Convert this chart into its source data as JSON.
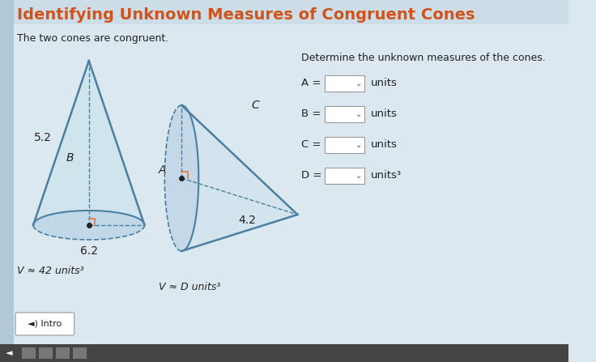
{
  "title": "Identifying Unknown Measures of Congruent Cones",
  "subtitle": "The two cones are congruent.",
  "bg_color": "#dce8f0",
  "title_color": "#d2531a",
  "cone1": {
    "label_slant": "5.2",
    "label_B": "B",
    "label_radius": "6.2",
    "volume": "V ≈ 42 units³",
    "fill_color": "#d0e4ee",
    "line_color": "#4a7fa0",
    "base_fill": "#c0d8e8"
  },
  "cone2": {
    "label_A": "A",
    "label_C": "C",
    "label_radius": "4.2",
    "volume": "V ≈ D units³",
    "fill_color": "#d4e4ee",
    "line_color": "#4a7fa0",
    "base_fill": "#c4d8e8"
  },
  "right_panel": {
    "header": "Determine the unknown measures of the cones.",
    "rows": [
      "A =",
      "B =",
      "C =",
      "D ="
    ],
    "units": [
      "units",
      "units",
      "units",
      "units³"
    ]
  },
  "intro_btn": "Intro"
}
